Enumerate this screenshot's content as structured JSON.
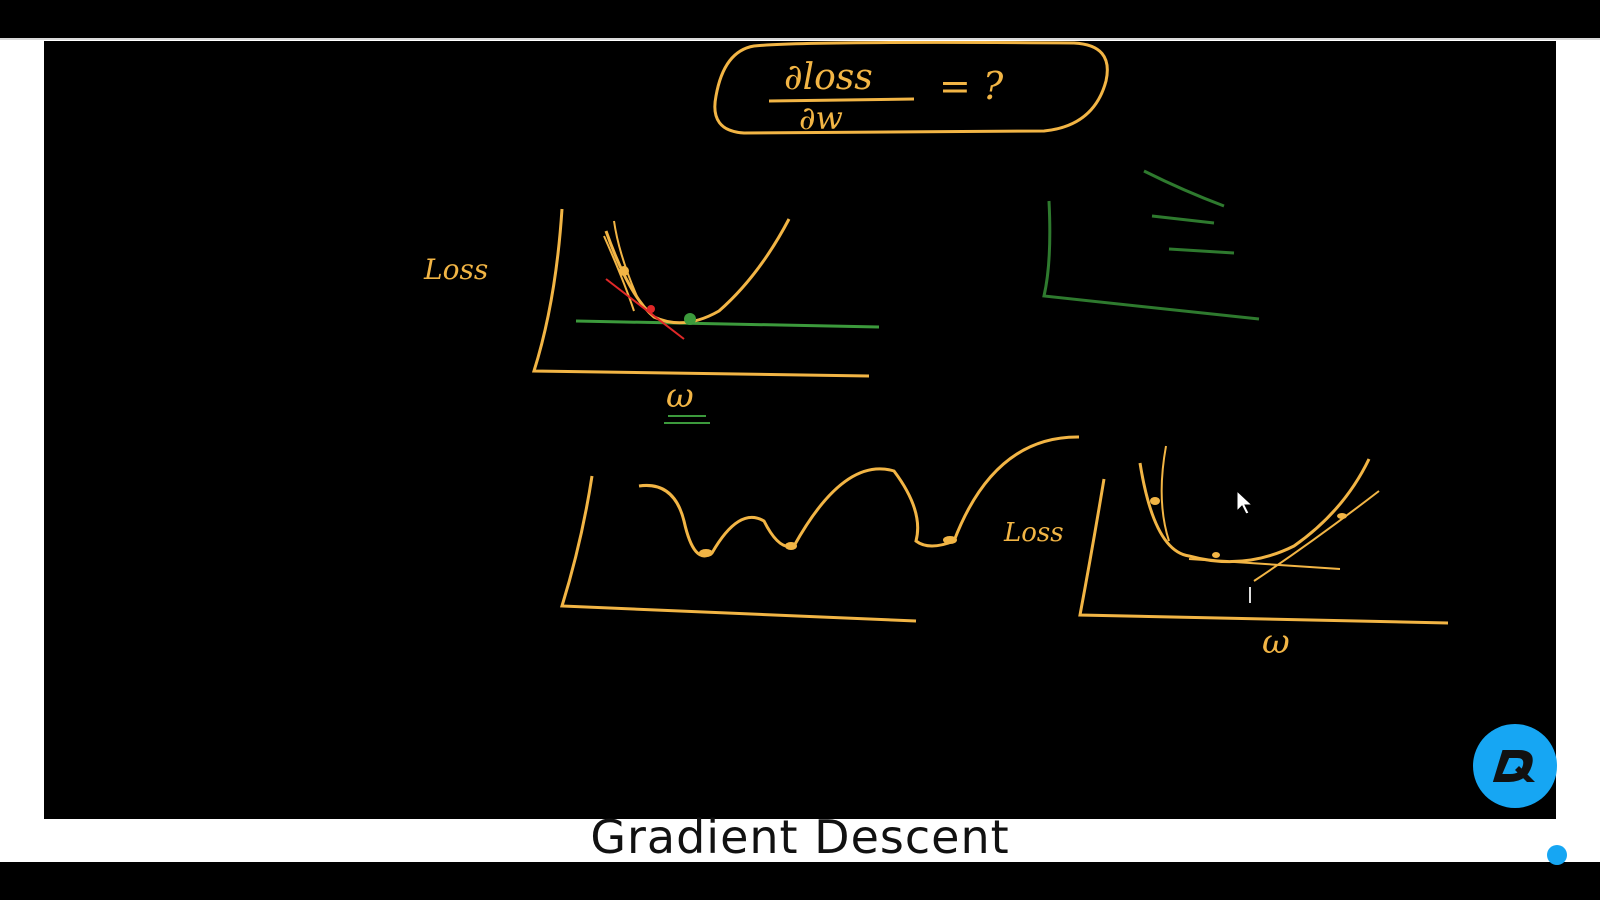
{
  "caption": "Gradient Descent",
  "colors": {
    "chalk_orange": "#f2b545",
    "chalk_green": "#3c9a3c",
    "chalk_red": "#e02828",
    "logo_blue": "#16a6f3"
  },
  "board": {
    "formula_numerator": "∂loss",
    "formula_denominator": "∂w",
    "formula_rhs": "= ?",
    "top_graph_y_label": "Loss",
    "top_graph_x_label": "ω",
    "bottom_right_y_label": "Loss",
    "bottom_right_x_label": "ω"
  },
  "icons": [
    "mouse-cursor-icon",
    "text-cursor-icon",
    "dl-logo-icon"
  ]
}
